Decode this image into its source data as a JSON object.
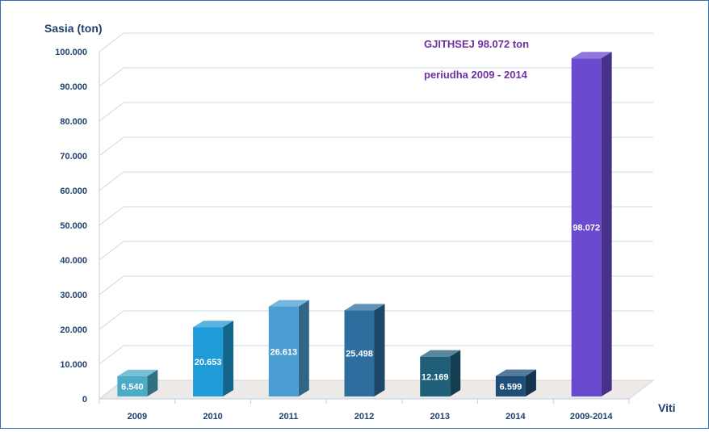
{
  "chart_data": {
    "type": "bar",
    "title": "",
    "ylabel": "Sasia (ton)",
    "xlabel": "Viti",
    "categories": [
      "2009",
      "2010",
      "2011",
      "2012",
      "2013",
      "2014",
      "2009-2014"
    ],
    "values": [
      6540,
      20653,
      26613,
      25498,
      12169,
      6599,
      98072
    ],
    "data_labels": [
      "6.540",
      "20.653",
      "26.613",
      "25.498",
      "12.169",
      "6.599",
      "98.072"
    ],
    "ylim": [
      0,
      100000
    ],
    "yticks": [
      "0",
      "10.000",
      "20.000",
      "30.000",
      "40.000",
      "50.000",
      "60.000",
      "70.000",
      "80.000",
      "90.000",
      "100.000"
    ],
    "grid": true,
    "style": "3d-bar",
    "colors": [
      "#4bacc6",
      "#1f9bd7",
      "#4a9ed3",
      "#2e6e9e",
      "#1f5f7a",
      "#1f4e79",
      "#6a4bd0"
    ],
    "annotations": [
      "GJITHSEJ 98.072 ton",
      "periudha 2009 - 2014"
    ],
    "annotation_color": "#7030a0"
  }
}
